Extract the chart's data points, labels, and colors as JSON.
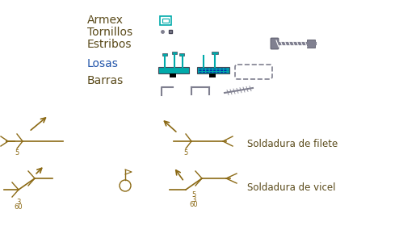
{
  "bg_color": "#ffffff",
  "text_color_dark": "#5a4a1a",
  "text_color_blue": "#2255aa",
  "text_color_teal": "#009999",
  "text_color_gray": "#777788",
  "label_armex": "Armex",
  "label_tornillos": "Tornillos",
  "label_estribos": "Estribos",
  "label_losas": "Losas",
  "label_barras": "Barras",
  "label_soldadura_filete": "Soldadura de filete",
  "label_soldadura_vicel": "Soldadura de vicel",
  "weld_color": "#8B6914",
  "gray_color": "#808090",
  "teal_color": "#00AAAA",
  "blue_color": "#0000CC",
  "dark_gray": "#444455",
  "black": "#000000"
}
